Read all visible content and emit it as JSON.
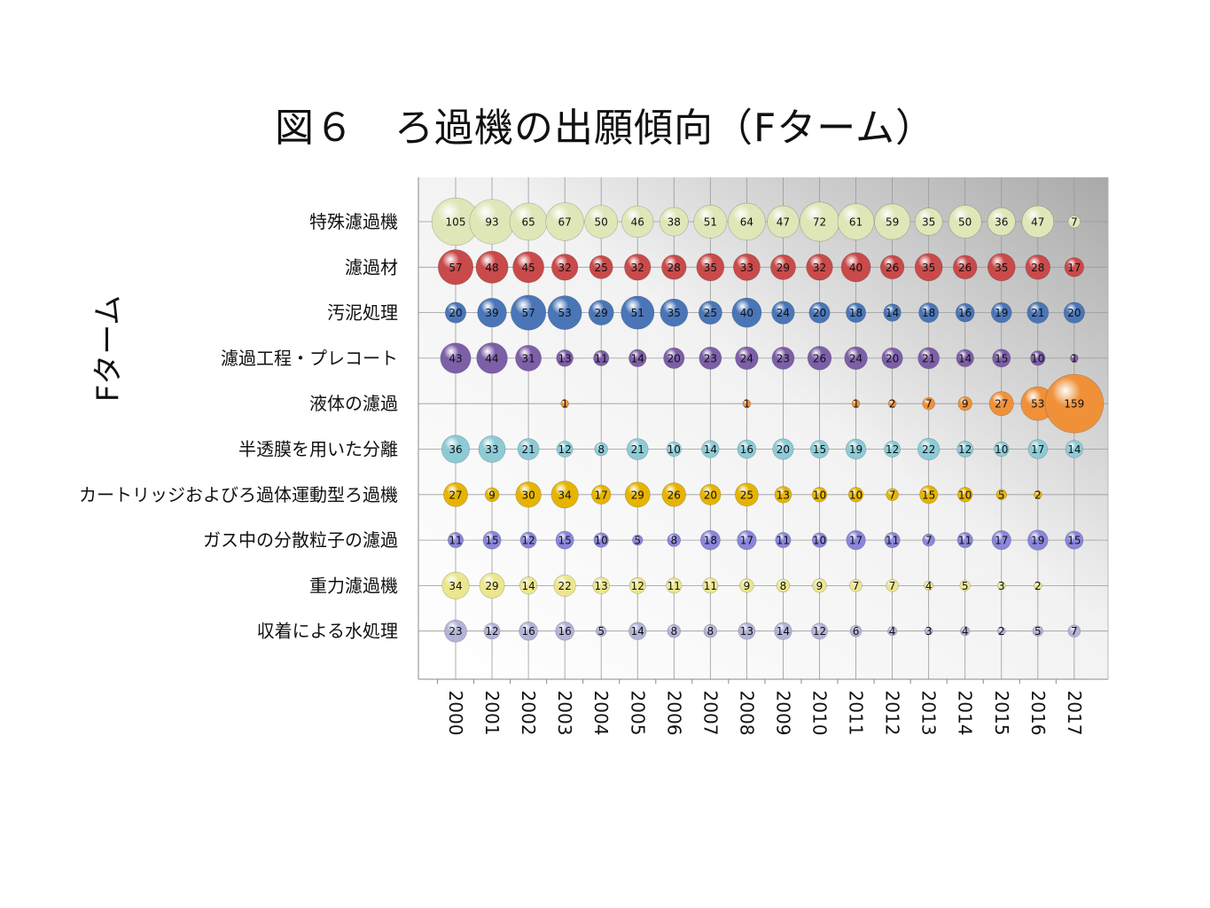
{
  "title": "図６　ろ過機の出願傾向（Fターム）",
  "chart_data": {
    "type": "bubble",
    "title": "図６　ろ過機の出願傾向（Fターム）",
    "ylabel": "Fターム",
    "xlabel": "",
    "x": [
      "2000",
      "2001",
      "2002",
      "2003",
      "2004",
      "2005",
      "2006",
      "2007",
      "2008",
      "2009",
      "2010",
      "2011",
      "2012",
      "2013",
      "2014",
      "2015",
      "2016",
      "2017"
    ],
    "series": [
      {
        "name": "特殊濾過機",
        "color": "#dfe6b8",
        "values": [
          105,
          93,
          65,
          67,
          50,
          46,
          38,
          51,
          64,
          47,
          72,
          61,
          59,
          35,
          50,
          36,
          47,
          7
        ]
      },
      {
        "name": "濾過材",
        "color": "#c94a4a",
        "values": [
          57,
          48,
          45,
          32,
          25,
          32,
          28,
          35,
          33,
          29,
          32,
          40,
          26,
          35,
          26,
          35,
          28,
          17
        ]
      },
      {
        "name": "汚泥処理",
        "color": "#4a76b8",
        "values": [
          20,
          39,
          57,
          53,
          29,
          51,
          35,
          25,
          40,
          24,
          20,
          18,
          14,
          18,
          16,
          19,
          21,
          20
        ]
      },
      {
        "name": "濾過工程・プレコート",
        "color": "#7d5fa8",
        "values": [
          43,
          44,
          31,
          13,
          11,
          14,
          20,
          23,
          24,
          23,
          26,
          24,
          20,
          21,
          14,
          15,
          10,
          1
        ]
      },
      {
        "name": "液体の濾過",
        "color": "#f0913a",
        "values": [
          null,
          null,
          null,
          1,
          null,
          null,
          null,
          null,
          1,
          null,
          null,
          1,
          2,
          7,
          9,
          27,
          53,
          159
        ]
      },
      {
        "name": "半透膜を用いた分離",
        "color": "#8ccbd6",
        "values": [
          36,
          33,
          21,
          12,
          8,
          21,
          10,
          14,
          16,
          20,
          15,
          19,
          12,
          22,
          12,
          10,
          17,
          14
        ]
      },
      {
        "name": "カートリッジおよびろ過体運動型ろ過機",
        "color": "#e6b400",
        "values": [
          27,
          9,
          30,
          34,
          17,
          29,
          26,
          20,
          25,
          13,
          10,
          10,
          7,
          15,
          10,
          5,
          2,
          null
        ]
      },
      {
        "name": "ガス中の分散粒子の濾過",
        "color": "#8a86dc",
        "values": [
          11,
          15,
          12,
          15,
          10,
          5,
          8,
          18,
          17,
          11,
          10,
          17,
          11,
          7,
          11,
          17,
          19,
          15
        ]
      },
      {
        "name": "重力濾過機",
        "color": "#ece68e",
        "values": [
          34,
          29,
          14,
          22,
          13,
          12,
          11,
          11,
          9,
          8,
          9,
          7,
          7,
          4,
          5,
          3,
          2,
          null
        ]
      },
      {
        "name": "収着による水処理",
        "color": "#b3b3d8",
        "values": [
          23,
          12,
          16,
          16,
          5,
          14,
          8,
          8,
          13,
          14,
          12,
          6,
          4,
          3,
          4,
          2,
          5,
          7
        ]
      }
    ]
  }
}
